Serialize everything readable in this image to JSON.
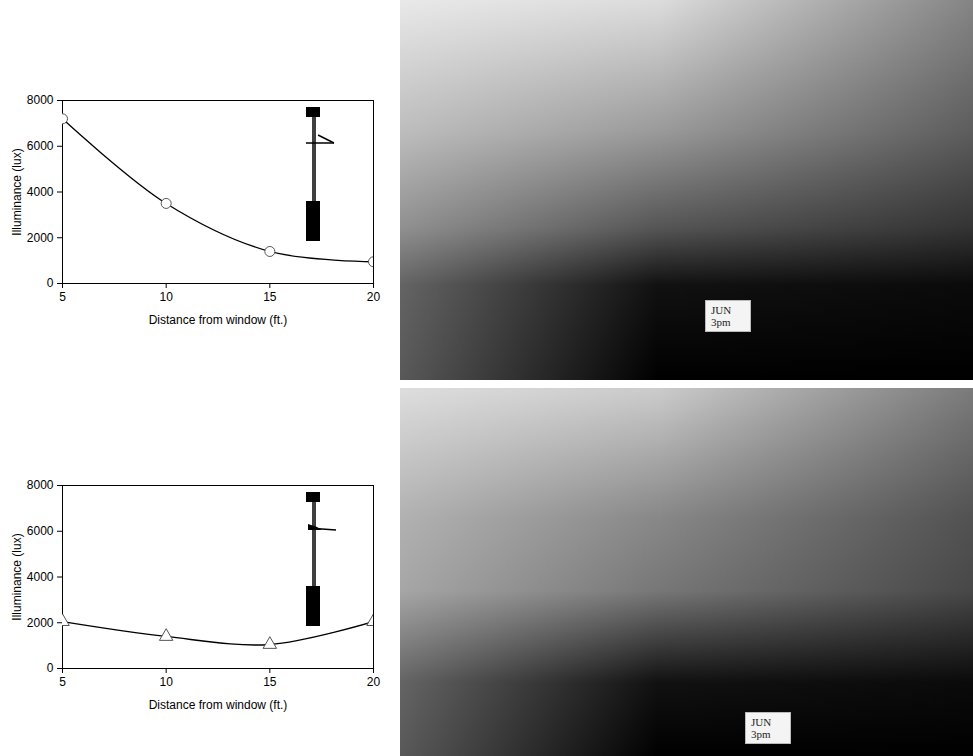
{
  "chart_data": [
    {
      "type": "line",
      "x": [
        5,
        10,
        15,
        20
      ],
      "values": [
        7200,
        3500,
        1400,
        950
      ],
      "x_label": "Distance from window (ft.)",
      "y_label": "Illuminance (lux)",
      "xlim": [
        5,
        20
      ],
      "xticks": [
        5,
        10,
        15,
        20
      ],
      "ylim": [
        0,
        8000
      ],
      "yticks": [
        0,
        2000,
        4000,
        6000,
        8000
      ],
      "marker": "circle",
      "color": "#000000",
      "grid": false,
      "annotation": "JUN 3pm"
    },
    {
      "type": "line",
      "x": [
        5,
        10,
        15,
        20
      ],
      "values": [
        2050,
        1400,
        1050,
        2050
      ],
      "x_label": "Distance from window (ft.)",
      "y_label": "Illuminance (lux)",
      "xlim": [
        5,
        20
      ],
      "xticks": [
        5,
        10,
        15,
        20
      ],
      "ylim": [
        0,
        8000
      ],
      "yticks": [
        0,
        2000,
        4000,
        6000,
        8000
      ],
      "marker": "triangle",
      "color": "#000000",
      "grid": false,
      "annotation": "JUN 3pm"
    }
  ]
}
